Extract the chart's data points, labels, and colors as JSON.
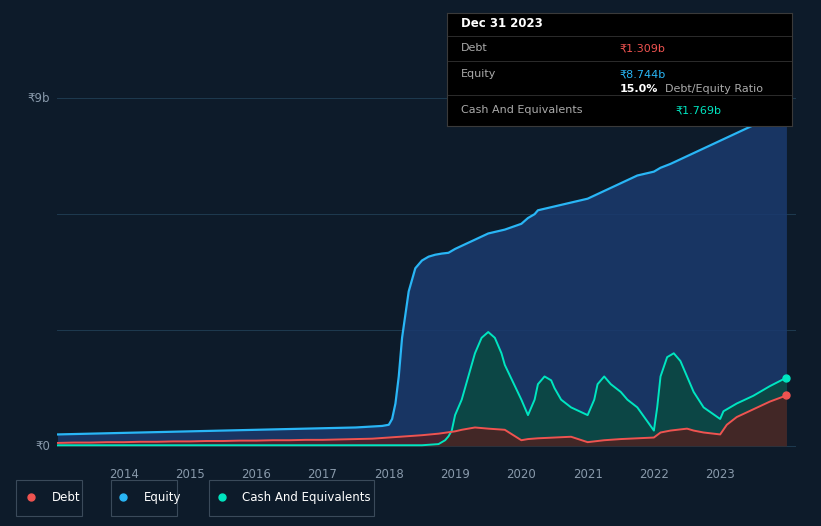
{
  "background_color": "#0d1b2a",
  "plot_bg_color": "#0d1b2a",
  "grid_color": "#1e3a50",
  "y_label_0": "₹0",
  "y_label_9b": "₹9b",
  "equity_x": [
    2013.0,
    2013.25,
    2013.5,
    2013.75,
    2014.0,
    2014.25,
    2014.5,
    2014.75,
    2015.0,
    2015.25,
    2015.5,
    2015.75,
    2016.0,
    2016.25,
    2016.5,
    2016.75,
    2017.0,
    2017.25,
    2017.5,
    2017.6,
    2017.7,
    2017.8,
    2017.9,
    2018.0,
    2018.05,
    2018.1,
    2018.15,
    2018.2,
    2018.3,
    2018.4,
    2018.5,
    2018.6,
    2018.7,
    2018.8,
    2018.9,
    2019.0,
    2019.25,
    2019.5,
    2019.75,
    2020.0,
    2020.1,
    2020.2,
    2020.25,
    2020.5,
    2020.75,
    2021.0,
    2021.25,
    2021.5,
    2021.75,
    2022.0,
    2022.1,
    2022.25,
    2022.5,
    2022.75,
    2023.0,
    2023.25,
    2023.5,
    2023.75,
    2024.0
  ],
  "equity_y": [
    0.3,
    0.31,
    0.32,
    0.33,
    0.34,
    0.35,
    0.36,
    0.37,
    0.38,
    0.39,
    0.4,
    0.41,
    0.42,
    0.43,
    0.44,
    0.45,
    0.46,
    0.47,
    0.48,
    0.49,
    0.5,
    0.51,
    0.52,
    0.55,
    0.7,
    1.1,
    1.8,
    2.8,
    4.0,
    4.6,
    4.8,
    4.9,
    4.95,
    4.98,
    5.0,
    5.1,
    5.3,
    5.5,
    5.6,
    5.75,
    5.9,
    6.0,
    6.1,
    6.2,
    6.3,
    6.4,
    6.6,
    6.8,
    7.0,
    7.1,
    7.2,
    7.3,
    7.5,
    7.7,
    7.9,
    8.1,
    8.3,
    8.55,
    8.744
  ],
  "equity_color": "#29b6f6",
  "equity_fill_color": "#1a3a6e",
  "equity_fill_alpha": 0.85,
  "debt_x": [
    2013.0,
    2013.25,
    2013.5,
    2013.75,
    2014.0,
    2014.25,
    2014.5,
    2014.75,
    2015.0,
    2015.25,
    2015.5,
    2015.75,
    2016.0,
    2016.25,
    2016.5,
    2016.75,
    2017.0,
    2017.25,
    2017.5,
    2017.75,
    2018.0,
    2018.25,
    2018.5,
    2018.75,
    2019.0,
    2019.1,
    2019.2,
    2019.3,
    2019.5,
    2019.75,
    2020.0,
    2020.1,
    2020.25,
    2020.5,
    2020.75,
    2021.0,
    2021.1,
    2021.25,
    2021.5,
    2021.75,
    2022.0,
    2022.1,
    2022.25,
    2022.5,
    2022.6,
    2022.75,
    2023.0,
    2023.1,
    2023.25,
    2023.5,
    2023.75,
    2024.0
  ],
  "debt_y": [
    0.08,
    0.09,
    0.09,
    0.1,
    0.1,
    0.11,
    0.11,
    0.12,
    0.12,
    0.13,
    0.13,
    0.14,
    0.14,
    0.15,
    0.15,
    0.16,
    0.16,
    0.17,
    0.18,
    0.19,
    0.22,
    0.25,
    0.28,
    0.32,
    0.38,
    0.42,
    0.45,
    0.48,
    0.45,
    0.42,
    0.15,
    0.18,
    0.2,
    0.22,
    0.24,
    0.1,
    0.12,
    0.15,
    0.18,
    0.2,
    0.22,
    0.35,
    0.4,
    0.45,
    0.4,
    0.35,
    0.3,
    0.55,
    0.75,
    0.95,
    1.15,
    1.309
  ],
  "debt_color": "#ef5350",
  "debt_fill_color": "#5a1a1a",
  "debt_fill_alpha": 0.7,
  "cash_x": [
    2013.0,
    2013.25,
    2013.5,
    2013.75,
    2014.0,
    2014.25,
    2014.5,
    2014.75,
    2015.0,
    2015.25,
    2015.5,
    2015.75,
    2016.0,
    2016.25,
    2016.5,
    2016.75,
    2017.0,
    2017.25,
    2017.5,
    2017.75,
    2018.0,
    2018.25,
    2018.5,
    2018.75,
    2018.85,
    2018.9,
    2018.95,
    2019.0,
    2019.1,
    2019.2,
    2019.3,
    2019.4,
    2019.5,
    2019.6,
    2019.65,
    2019.7,
    2019.75,
    2020.0,
    2020.1,
    2020.2,
    2020.25,
    2020.35,
    2020.45,
    2020.5,
    2020.6,
    2020.75,
    2021.0,
    2021.1,
    2021.15,
    2021.25,
    2021.35,
    2021.5,
    2021.6,
    2021.75,
    2022.0,
    2022.05,
    2022.1,
    2022.2,
    2022.3,
    2022.4,
    2022.5,
    2022.6,
    2022.75,
    2023.0,
    2023.05,
    2023.25,
    2023.5,
    2023.75,
    2024.0
  ],
  "cash_y": [
    0.02,
    0.02,
    0.02,
    0.02,
    0.02,
    0.02,
    0.02,
    0.02,
    0.02,
    0.02,
    0.02,
    0.02,
    0.02,
    0.02,
    0.02,
    0.02,
    0.02,
    0.02,
    0.02,
    0.02,
    0.02,
    0.02,
    0.02,
    0.05,
    0.15,
    0.25,
    0.4,
    0.8,
    1.2,
    1.8,
    2.4,
    2.8,
    2.95,
    2.8,
    2.6,
    2.4,
    2.1,
    1.2,
    0.8,
    1.2,
    1.6,
    1.8,
    1.7,
    1.5,
    1.2,
    1.0,
    0.8,
    1.2,
    1.6,
    1.8,
    1.6,
    1.4,
    1.2,
    1.0,
    0.4,
    1.0,
    1.8,
    2.3,
    2.4,
    2.2,
    1.8,
    1.4,
    1.0,
    0.7,
    0.9,
    1.1,
    1.3,
    1.55,
    1.769
  ],
  "cash_color": "#00e5c0",
  "cash_fill_color": "#0a4a40",
  "cash_fill_alpha": 0.85,
  "ylim": [
    -0.3,
    9.5
  ],
  "xlim": [
    2013.0,
    2024.15
  ],
  "tooltip": {
    "title": "Dec 31 2023",
    "debt_label": "Debt",
    "debt_value": "₹1.309b",
    "equity_label": "Equity",
    "equity_value": "₹8.744b",
    "ratio_pct": "15.0%",
    "ratio_label": "Debt/Equity Ratio",
    "cash_label": "Cash And Equivalents",
    "cash_value": "₹1.769b"
  },
  "legend_items": [
    "Debt",
    "Equity",
    "Cash And Equivalents"
  ],
  "legend_colors": [
    "#ef5350",
    "#29b6f6",
    "#00e5c0"
  ]
}
